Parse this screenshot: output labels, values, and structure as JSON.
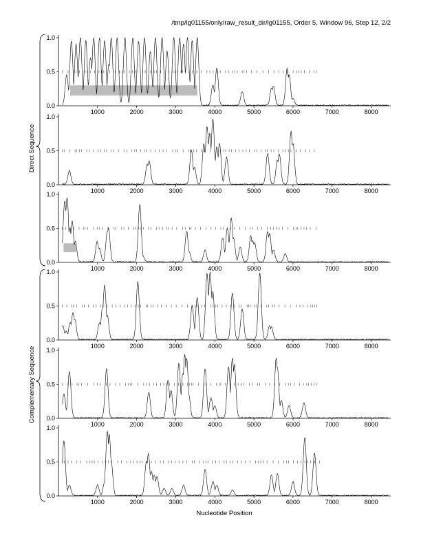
{
  "header": {
    "title": "/tmp/lg01155/only/raw_result_dir/lg01155, Order 5, Window 96, Step 12, 2/2"
  },
  "labels": {
    "direct": "Direct Sequence",
    "complementary": "Complementary Sequence",
    "xlabel": "Nucleotide Position"
  },
  "chart_data": {
    "type": "line",
    "title": "/tmp/lg01155/only/raw_result_dir/lg01155, Order 5, Window 96, Step 12, 2/2",
    "xlabel": "Nucleotide Position",
    "xlim": [
      0,
      8500
    ],
    "ylim": [
      0,
      1
    ],
    "x_ticks": [
      1000,
      2000,
      3000,
      4000,
      5000,
      6000,
      7000,
      8000
    ],
    "y_ticks": [
      0.0,
      0.5,
      1.0
    ],
    "panels": [
      {
        "group": "Direct Sequence",
        "peaks": [
          [
            210,
            0.45
          ],
          [
            330,
            0.95
          ],
          [
            450,
            0.9
          ],
          [
            560,
            1.0
          ],
          [
            700,
            0.95
          ],
          [
            820,
            0.7
          ],
          [
            900,
            1.0
          ],
          [
            1050,
            1.0
          ],
          [
            1180,
            0.95
          ],
          [
            1290,
            0.6
          ],
          [
            1350,
            1.0
          ],
          [
            1500,
            1.0
          ],
          [
            1700,
            1.0
          ],
          [
            1900,
            1.0
          ],
          [
            2050,
            0.95
          ],
          [
            2200,
            1.0
          ],
          [
            2350,
            0.8
          ],
          [
            2480,
            1.0
          ],
          [
            2650,
            1.0
          ],
          [
            2780,
            0.8
          ],
          [
            2950,
            1.0
          ],
          [
            3100,
            1.0
          ],
          [
            3200,
            0.9
          ],
          [
            3300,
            1.0
          ],
          [
            3420,
            0.95
          ],
          [
            3550,
            1.0
          ],
          [
            3950,
            0.3
          ],
          [
            4050,
            0.55
          ],
          [
            4700,
            0.2
          ],
          [
            5450,
            0.25
          ],
          [
            5500,
            0.28
          ],
          [
            5850,
            0.55
          ],
          [
            5900,
            0.45
          ],
          [
            6000,
            0.1
          ]
        ],
        "tick_rows": [
          [
            0.5,
            100,
            6700
          ]
        ],
        "shaded": [
          {
            "x": [
              300,
              3550
            ],
            "y": [
              0.15,
              0.3
            ]
          }
        ]
      },
      {
        "group": "Direct Sequence",
        "peaks": [
          [
            280,
            0.2
          ],
          [
            2270,
            0.3
          ],
          [
            2320,
            0.35
          ],
          [
            3400,
            0.5
          ],
          [
            3480,
            0.25
          ],
          [
            3720,
            0.6
          ],
          [
            3800,
            0.85
          ],
          [
            3870,
            0.75
          ],
          [
            3950,
            0.97
          ],
          [
            4050,
            0.55
          ],
          [
            4120,
            0.6
          ],
          [
            4300,
            0.4
          ],
          [
            5350,
            0.45
          ],
          [
            5600,
            0.35
          ],
          [
            5650,
            0.45
          ],
          [
            5950,
            0.78
          ],
          [
            6000,
            0.6
          ]
        ],
        "tick_rows": [
          [
            0.5,
            100,
            6600
          ]
        ]
      },
      {
        "group": "Direct Sequence",
        "peaks": [
          [
            160,
            0.9
          ],
          [
            220,
            0.95
          ],
          [
            290,
            0.5
          ],
          [
            350,
            0.6
          ],
          [
            430,
            0.3
          ],
          [
            990,
            0.3
          ],
          [
            1050,
            0.2
          ],
          [
            1250,
            0.45
          ],
          [
            1280,
            0.5
          ],
          [
            2080,
            0.85
          ],
          [
            2150,
            0.1
          ],
          [
            3280,
            0.45
          ],
          [
            3340,
            0.15
          ],
          [
            3750,
            0.17
          ],
          [
            4200,
            0.35
          ],
          [
            4320,
            0.5
          ],
          [
            4420,
            0.65
          ],
          [
            4480,
            0.35
          ],
          [
            4650,
            0.22
          ],
          [
            4920,
            0.38
          ],
          [
            4970,
            0.32
          ],
          [
            5020,
            0.28
          ],
          [
            5350,
            0.45
          ],
          [
            5400,
            0.42
          ],
          [
            5500,
            0.18
          ],
          [
            5800,
            0.12
          ]
        ],
        "tick_rows": [
          [
            0.5,
            100,
            6700
          ]
        ],
        "shaded": [
          {
            "x": [
              130,
              450
            ],
            "y": [
              0.15,
              0.28
            ]
          }
        ]
      },
      {
        "group": "Complementary Sequence",
        "peaks": [
          [
            110,
            0.2
          ],
          [
            200,
            0.12
          ],
          [
            300,
            0.25
          ],
          [
            370,
            0.4
          ],
          [
            420,
            0.3
          ],
          [
            1050,
            0.25
          ],
          [
            1130,
            0.5
          ],
          [
            1180,
            0.8
          ],
          [
            1250,
            0.35
          ],
          [
            2030,
            0.85
          ],
          [
            3420,
            0.5
          ],
          [
            3550,
            0.62
          ],
          [
            3800,
            0.97
          ],
          [
            3880,
            1.0
          ],
          [
            3950,
            0.7
          ],
          [
            4450,
            0.68
          ],
          [
            4700,
            0.45
          ],
          [
            5150,
            0.98
          ],
          [
            5400,
            0.2
          ],
          [
            5450,
            0.18
          ]
        ],
        "tick_rows": [
          [
            0.5,
            100,
            6700
          ]
        ]
      },
      {
        "group": "Complementary Sequence",
        "peaks": [
          [
            140,
            0.35
          ],
          [
            280,
            0.68
          ],
          [
            1230,
            0.72
          ],
          [
            2310,
            0.38
          ],
          [
            2800,
            0.55
          ],
          [
            2880,
            0.4
          ],
          [
            3080,
            0.8
          ],
          [
            3180,
            0.65
          ],
          [
            3230,
            0.93
          ],
          [
            3280,
            0.88
          ],
          [
            3330,
            0.35
          ],
          [
            3750,
            0.72
          ],
          [
            3900,
            0.3
          ],
          [
            4000,
            0.18
          ],
          [
            4350,
            0.75
          ],
          [
            4450,
            0.88
          ],
          [
            4500,
            0.78
          ],
          [
            5570,
            0.88
          ],
          [
            5600,
            0.75
          ],
          [
            5700,
            0.25
          ],
          [
            5900,
            0.18
          ],
          [
            6280,
            0.22
          ]
        ],
        "tick_rows": [
          [
            0.5,
            100,
            6700
          ]
        ]
      },
      {
        "group": "Complementary Sequence",
        "peaks": [
          [
            140,
            0.8
          ],
          [
            280,
            0.15
          ],
          [
            1000,
            0.15
          ],
          [
            1180,
            0.2
          ],
          [
            1250,
            0.95
          ],
          [
            1300,
            0.9
          ],
          [
            1350,
            0.5
          ],
          [
            2250,
            0.5
          ],
          [
            2300,
            0.62
          ],
          [
            2380,
            0.35
          ],
          [
            2450,
            0.3
          ],
          [
            2520,
            0.28
          ],
          [
            2700,
            0.1
          ],
          [
            2900,
            0.1
          ],
          [
            3200,
            0.15
          ],
          [
            3750,
            0.38
          ],
          [
            3950,
            0.2
          ],
          [
            4050,
            0.15
          ],
          [
            4450,
            0.08
          ],
          [
            5450,
            0.3
          ],
          [
            5600,
            0.33
          ],
          [
            6000,
            0.2
          ],
          [
            6300,
            0.85
          ],
          [
            6550,
            0.63
          ]
        ],
        "tick_rows": [
          [
            0.5,
            100,
            6700
          ]
        ]
      }
    ]
  }
}
